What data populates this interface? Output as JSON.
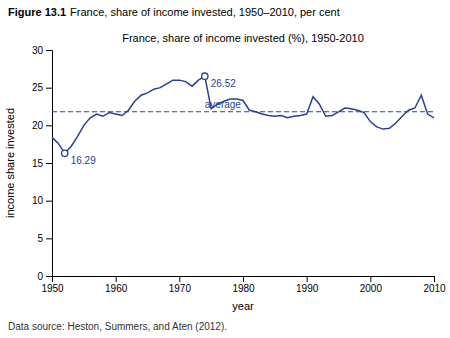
{
  "chart_data": {
    "type": "line",
    "figure_label": "Figure 13.1",
    "subtitle": "France, share of income invested, 1950–2010, per cent",
    "title": "France, share of income invested (%), 1950-2010",
    "source": "Data source: Heston, Summers, and Aten (2012).",
    "x_label": "year",
    "y_label": "income share invested",
    "xlim": [
      1950,
      2010
    ],
    "ylim": [
      0,
      30
    ],
    "xticks": [
      1950,
      1960,
      1970,
      1980,
      1990,
      2000,
      2010
    ],
    "yticks": [
      0,
      5,
      10,
      15,
      20,
      25,
      30
    ],
    "grid": false,
    "color": "#2a3f8f",
    "x": [
      1950,
      1951,
      1952,
      1953,
      1954,
      1955,
      1956,
      1957,
      1958,
      1959,
      1960,
      1961,
      1962,
      1963,
      1964,
      1965,
      1966,
      1967,
      1968,
      1969,
      1970,
      1971,
      1972,
      1973,
      1974,
      1975,
      1976,
      1977,
      1978,
      1979,
      1980,
      1981,
      1982,
      1983,
      1984,
      1985,
      1986,
      1987,
      1988,
      1989,
      1990,
      1991,
      1992,
      1993,
      1994,
      1995,
      1996,
      1997,
      1998,
      1999,
      2000,
      2001,
      2002,
      2003,
      2004,
      2005,
      2006,
      2007,
      2008,
      2009,
      2010
    ],
    "values": [
      18.4,
      17.6,
      16.29,
      17.2,
      18.5,
      20.0,
      21.0,
      21.5,
      21.2,
      21.7,
      21.5,
      21.3,
      22.0,
      23.2,
      24.0,
      24.3,
      24.8,
      25.0,
      25.5,
      26.0,
      26.0,
      25.8,
      25.2,
      26.0,
      26.52,
      22.2,
      22.8,
      23.2,
      23.5,
      23.5,
      23.3,
      22.0,
      21.8,
      21.5,
      21.3,
      21.2,
      21.3,
      21.0,
      21.2,
      21.3,
      21.5,
      23.8,
      22.8,
      21.2,
      21.3,
      21.8,
      22.3,
      22.2,
      22.0,
      21.7,
      20.5,
      19.8,
      19.5,
      19.6,
      20.3,
      21.2,
      22.0,
      22.3,
      24.0,
      21.5,
      21.0
    ],
    "reference_lines": [
      {
        "value": 21.8,
        "label": "average",
        "line_style": "dashed",
        "color": "#2a3f8f"
      }
    ],
    "annotations": [
      {
        "x": 1952,
        "value": 16.29,
        "label": "16.29",
        "marker": "circle"
      },
      {
        "x": 1974,
        "value": 26.52,
        "label": "26.52",
        "marker": "circle"
      }
    ]
  }
}
